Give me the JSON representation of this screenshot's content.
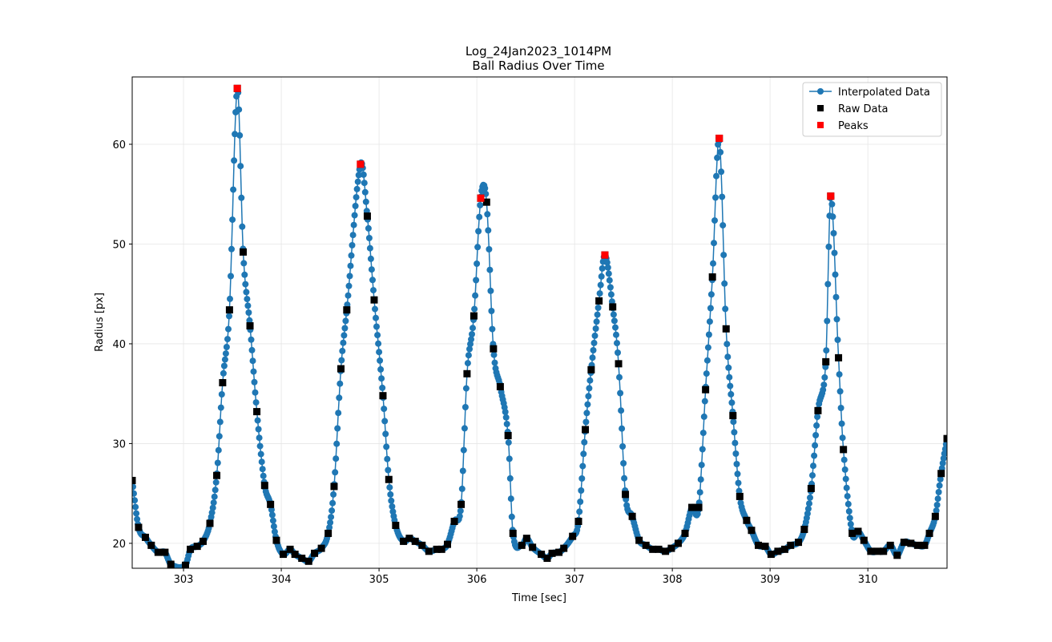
{
  "chart_data": {
    "type": "line",
    "title": "Log_24Jan2023_1014PM",
    "subtitle": "Ball Radius Over Time",
    "xlabel": "Time [sec]",
    "ylabel": "Radius [px]",
    "xlim": [
      302.475,
      310.81
    ],
    "ylim": [
      17.5,
      66.75
    ],
    "xticks": [
      303,
      304,
      305,
      306,
      307,
      308,
      309,
      310
    ],
    "yticks": [
      20,
      30,
      40,
      50,
      60
    ],
    "grid": true,
    "legend_position": "top-right",
    "colors": {
      "interpolated": "#1f77b4",
      "raw": "#000000",
      "peaks": "#ff0000"
    },
    "series": [
      {
        "name": "Interpolated Data",
        "style": "line-with-circle-markers",
        "derived_from": "Raw Data"
      },
      {
        "name": "Raw Data",
        "style": "square-markers",
        "points": [
          [
            302.475,
            26.3
          ],
          [
            302.54,
            21.6
          ],
          [
            302.61,
            20.6
          ],
          [
            302.67,
            19.8
          ],
          [
            302.74,
            19.1
          ],
          [
            302.81,
            19.1
          ],
          [
            302.87,
            17.9
          ],
          [
            303.02,
            17.8
          ],
          [
            303.07,
            19.4
          ],
          [
            303.14,
            19.7
          ],
          [
            303.2,
            20.2
          ],
          [
            303.27,
            22.0
          ],
          [
            303.34,
            26.8
          ],
          [
            303.4,
            36.1
          ],
          [
            303.47,
            43.4
          ],
          [
            303.55,
            65.6
          ],
          [
            303.61,
            49.2
          ],
          [
            303.68,
            41.8
          ],
          [
            303.75,
            33.2
          ],
          [
            303.83,
            25.8
          ],
          [
            303.89,
            23.9
          ],
          [
            303.95,
            20.3
          ],
          [
            304.02,
            18.9
          ],
          [
            304.09,
            19.4
          ],
          [
            304.14,
            18.9
          ],
          [
            304.21,
            18.5
          ],
          [
            304.28,
            18.2
          ],
          [
            304.34,
            19.0
          ],
          [
            304.41,
            19.5
          ],
          [
            304.48,
            21.0
          ],
          [
            304.54,
            25.7
          ],
          [
            304.61,
            37.5
          ],
          [
            304.67,
            43.4
          ],
          [
            304.81,
            58.0
          ],
          [
            304.88,
            52.8
          ],
          [
            304.95,
            44.4
          ],
          [
            305.04,
            34.8
          ],
          [
            305.1,
            26.4
          ],
          [
            305.17,
            21.8
          ],
          [
            305.25,
            20.2
          ],
          [
            305.31,
            20.5
          ],
          [
            305.37,
            20.2
          ],
          [
            305.44,
            19.8
          ],
          [
            305.51,
            19.2
          ],
          [
            305.59,
            19.4
          ],
          [
            305.64,
            19.4
          ],
          [
            305.7,
            19.9
          ],
          [
            305.77,
            22.2
          ],
          [
            305.84,
            23.9
          ],
          [
            305.9,
            37.0
          ],
          [
            305.97,
            42.8
          ],
          [
            306.04,
            54.6
          ],
          [
            306.1,
            54.2
          ],
          [
            306.17,
            39.5
          ],
          [
            306.24,
            35.7
          ],
          [
            306.32,
            30.8
          ],
          [
            306.37,
            21.0
          ],
          [
            306.46,
            19.8
          ],
          [
            306.51,
            20.5
          ],
          [
            306.57,
            19.6
          ],
          [
            306.66,
            18.9
          ],
          [
            306.72,
            18.5
          ],
          [
            306.77,
            19.0
          ],
          [
            306.84,
            19.1
          ],
          [
            306.89,
            19.5
          ],
          [
            306.98,
            20.7
          ],
          [
            307.04,
            22.2
          ],
          [
            307.11,
            31.4
          ],
          [
            307.17,
            37.4
          ],
          [
            307.25,
            44.3
          ],
          [
            307.31,
            48.9
          ],
          [
            307.39,
            43.7
          ],
          [
            307.45,
            38.0
          ],
          [
            307.52,
            24.9
          ],
          [
            307.59,
            22.7
          ],
          [
            307.66,
            20.3
          ],
          [
            307.73,
            19.8
          ],
          [
            307.8,
            19.4
          ],
          [
            307.86,
            19.4
          ],
          [
            307.93,
            19.2
          ],
          [
            307.99,
            19.5
          ],
          [
            308.06,
            20.0
          ],
          [
            308.13,
            21.0
          ],
          [
            308.2,
            23.6
          ],
          [
            308.27,
            23.6
          ],
          [
            308.34,
            35.4
          ],
          [
            308.41,
            46.7
          ],
          [
            308.48,
            60.6
          ],
          [
            308.55,
            41.5
          ],
          [
            308.62,
            32.8
          ],
          [
            308.69,
            24.7
          ],
          [
            308.76,
            22.3
          ],
          [
            308.81,
            21.3
          ],
          [
            308.88,
            19.8
          ],
          [
            308.95,
            19.7
          ],
          [
            309.01,
            18.9
          ],
          [
            309.08,
            19.2
          ],
          [
            309.15,
            19.4
          ],
          [
            309.21,
            19.8
          ],
          [
            309.29,
            20.1
          ],
          [
            309.35,
            21.4
          ],
          [
            309.42,
            25.5
          ],
          [
            309.49,
            33.3
          ],
          [
            309.57,
            38.2
          ],
          [
            309.62,
            54.8
          ],
          [
            309.7,
            38.6
          ],
          [
            309.75,
            29.4
          ],
          [
            309.84,
            21.0
          ],
          [
            309.9,
            21.2
          ],
          [
            309.96,
            20.3
          ],
          [
            310.03,
            19.2
          ],
          [
            310.1,
            19.2
          ],
          [
            310.16,
            19.2
          ],
          [
            310.23,
            19.8
          ],
          [
            310.3,
            18.8
          ],
          [
            310.37,
            20.1
          ],
          [
            310.44,
            20.0
          ],
          [
            310.51,
            19.8
          ],
          [
            310.58,
            19.8
          ],
          [
            310.63,
            21.0
          ],
          [
            310.69,
            22.7
          ],
          [
            310.75,
            27.0
          ],
          [
            310.81,
            30.5
          ]
        ]
      },
      {
        "name": "Peaks",
        "style": "square-markers",
        "points": [
          [
            303.55,
            65.6
          ],
          [
            304.81,
            58.0
          ],
          [
            306.04,
            54.6
          ],
          [
            307.31,
            48.9
          ],
          [
            308.48,
            60.6
          ],
          [
            309.62,
            54.8
          ]
        ]
      }
    ]
  }
}
